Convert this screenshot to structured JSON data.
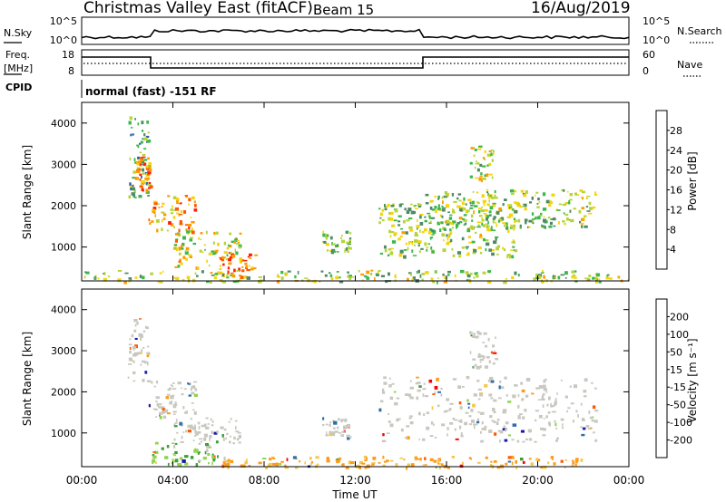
{
  "header": {
    "title": "Christmas Valley East (fitACF)",
    "beam": "Beam 15",
    "date": "16/Aug/2019"
  },
  "nsky_panel": {
    "left_label": "N.Sky",
    "right_label": "N.Search",
    "left_ticks": [
      "10^5",
      "10^0"
    ],
    "right_ticks": [
      "10^5",
      "10^0"
    ]
  },
  "freq_panel": {
    "left_label_1": "Freq.",
    "left_label_2": "[MHz]",
    "right_label": "Nave",
    "left_ticks": [
      "18",
      "8"
    ],
    "right_ticks": [
      "60",
      "0"
    ]
  },
  "cpid": {
    "label": "CPID",
    "text": "normal (fast) -151 RF"
  },
  "colors": {
    "power": [
      "#0000ff",
      "#2f5ea8",
      "#4e8a66",
      "#3cb84a",
      "#b6d43a",
      "#f4d40a",
      "#ff9a00",
      "#ff5a00",
      "#ff1f00"
    ],
    "velocity": [
      "#ff0000",
      "#ff5a00",
      "#ff9a1a",
      "#f4c84a",
      "#c8c8c0",
      "#8fd44a",
      "#3aa03a",
      "#2f6ea8",
      "#1a1aa8"
    ]
  },
  "chart_data": [
    {
      "type": "heatmap",
      "name": "power",
      "ylabel": "Slant Range [km]",
      "ylim": [
        180,
        4500
      ],
      "yticks": [
        "1000",
        "2000",
        "3000",
        "4000"
      ],
      "colorbar_label": "Power [dB]",
      "colorbar_ticks": [
        "4",
        "8",
        "12",
        "16",
        "20",
        "24",
        "28"
      ],
      "colorbar_range": [
        0,
        32
      ],
      "xlim_hours": [
        0,
        24
      ],
      "regions": [
        {
          "t0": 2.0,
          "t1": 2.9,
          "r0": 2200,
          "r1": 4200,
          "level": 0.35
        },
        {
          "t0": 2.3,
          "t1": 3.0,
          "r0": 2400,
          "r1": 3200,
          "level": 0.8
        },
        {
          "t0": 2.9,
          "t1": 5.0,
          "r0": 1400,
          "r1": 2300,
          "level": 0.75
        },
        {
          "t0": 4.0,
          "t1": 7.0,
          "r0": 500,
          "r1": 1400,
          "level": 0.6
        },
        {
          "t0": 6.0,
          "t1": 7.6,
          "r0": 300,
          "r1": 900,
          "level": 0.85
        },
        {
          "t0": 10.5,
          "t1": 11.8,
          "r0": 900,
          "r1": 1400,
          "level": 0.45
        },
        {
          "t0": 13.0,
          "t1": 19.0,
          "r0": 800,
          "r1": 2100,
          "level": 0.45
        },
        {
          "t0": 15.0,
          "t1": 22.5,
          "r0": 1500,
          "r1": 2400,
          "level": 0.45
        },
        {
          "t0": 17.0,
          "t1": 18.2,
          "r0": 2600,
          "r1": 3500,
          "level": 0.55
        },
        {
          "t0": 0.0,
          "t1": 24.0,
          "r0": 180,
          "r1": 450,
          "level": 0.5
        }
      ]
    },
    {
      "type": "heatmap",
      "name": "velocity",
      "ylabel": "Slant Range [km]",
      "ylim": [
        180,
        4500
      ],
      "yticks": [
        "1000",
        "2000",
        "3000",
        "4000"
      ],
      "colorbar_label": "Velocity [m s⁻¹]",
      "colorbar_ticks": [
        "200",
        "100",
        "50",
        "15",
        "-15",
        "-50",
        "-100",
        "-200"
      ],
      "xlim_hours": [
        0,
        24
      ],
      "regions": [
        {
          "t0": 2.0,
          "t1": 2.9,
          "r0": 2200,
          "r1": 3800,
          "v": 0
        },
        {
          "t0": 2.9,
          "t1": 5.0,
          "r0": 1400,
          "r1": 2300,
          "v": 0
        },
        {
          "t0": 4.0,
          "t1": 7.0,
          "r0": 700,
          "r1": 1400,
          "v": 0
        },
        {
          "t0": 3.0,
          "t1": 6.0,
          "r0": 250,
          "r1": 800,
          "v": 40
        },
        {
          "t0": 10.5,
          "t1": 11.8,
          "r0": 900,
          "r1": 1400,
          "v": 0
        },
        {
          "t0": 13.0,
          "t1": 22.5,
          "r0": 800,
          "r1": 2400,
          "v": 0
        },
        {
          "t0": 17.0,
          "t1": 18.2,
          "r0": 2600,
          "r1": 3500,
          "v": 0
        },
        {
          "t0": 6.0,
          "t1": 22.0,
          "r0": 180,
          "r1": 450,
          "v": -40
        }
      ]
    }
  ],
  "xaxis": {
    "label": "Time UT",
    "ticks": [
      "00:00",
      "04:00",
      "08:00",
      "12:00",
      "16:00",
      "20:00",
      "00:00"
    ]
  }
}
